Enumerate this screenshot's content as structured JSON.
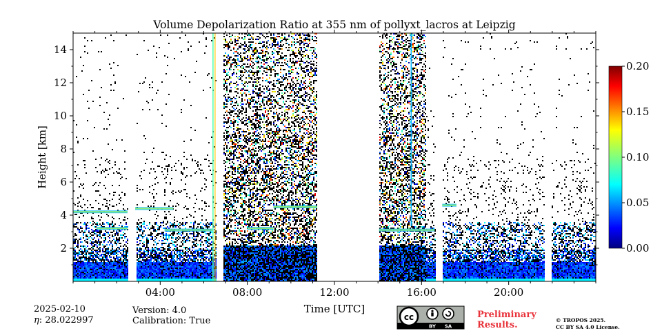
{
  "chart_data": {
    "type": "heatmap",
    "title": "Volume Depolarization Ratio at 355 nm of pollyxt_lacros at Leipzig",
    "xlabel": "Time [UTC]",
    "ylabel": "Height [km]",
    "xlim": [
      0,
      24
    ],
    "ylim": [
      0,
      15
    ],
    "x_ticks": [
      4,
      8,
      12,
      16,
      20
    ],
    "x_tick_labels": [
      "04:00",
      "08:00",
      "12:00",
      "16:00",
      "20:00"
    ],
    "y_ticks": [
      2,
      4,
      6,
      8,
      10,
      12,
      14
    ],
    "y_tick_labels": [
      "2",
      "4",
      "6",
      "8",
      "10",
      "12",
      "14"
    ],
    "colorbar": {
      "range": [
        0,
        0.2
      ],
      "colormap": "jet",
      "ticks": [
        0.0,
        0.05,
        0.1,
        0.15,
        0.2
      ],
      "tick_labels": [
        "0.00",
        "0.05",
        "0.10",
        "0.15",
        "0.20"
      ]
    },
    "data_gaps_utc": [
      [
        2.5,
        2.85
      ],
      [
        6.55,
        6.9
      ],
      [
        11.2,
        14.05
      ],
      [
        16.6,
        16.95
      ],
      [
        21.6,
        21.95
      ]
    ],
    "noisy_segments_utc": [
      [
        6.9,
        11.2
      ],
      [
        14.05,
        16.2
      ]
    ],
    "layers": [
      {
        "t0": 0.0,
        "t1": 2.5,
        "h": 4.2,
        "note": "aerosol layer"
      },
      {
        "t0": 2.85,
        "t1": 4.6,
        "h": 4.4,
        "note": "aerosol layer"
      },
      {
        "t0": 1.1,
        "t1": 2.5,
        "h": 3.2,
        "note": "layer"
      },
      {
        "t0": 4.2,
        "t1": 6.4,
        "h": 3.1,
        "note": "layer"
      },
      {
        "t0": 8.0,
        "t1": 9.2,
        "h": 3.2,
        "note": "layer"
      },
      {
        "t0": 9.2,
        "t1": 11.2,
        "h": 4.5,
        "note": "layer"
      },
      {
        "t0": 14.05,
        "t1": 16.6,
        "h": 3.1,
        "note": "layer"
      },
      {
        "t0": 16.95,
        "t1": 17.6,
        "h": 4.6,
        "note": "layer"
      }
    ]
  },
  "footer": {
    "date": "2025-02-10",
    "eta": "28.022997",
    "version": "Version: 4.0",
    "calibration": "Calibration: True",
    "cc_badge_left": "BY",
    "cc_badge_right": "SA",
    "preliminary_line1": "Preliminary",
    "preliminary_line2": "Results.",
    "copyright_line1": "© TROPOS 2025.",
    "copyright_line2": "CC BY SA 4.0 License."
  },
  "colors": {
    "gradient": [
      "#00007f",
      "#0000ff",
      "#007fff",
      "#00ffff",
      "#7fff7f",
      "#ffff00",
      "#ff7f00",
      "#ff0000",
      "#7f0000"
    ],
    "prelim": "#e8333b"
  }
}
